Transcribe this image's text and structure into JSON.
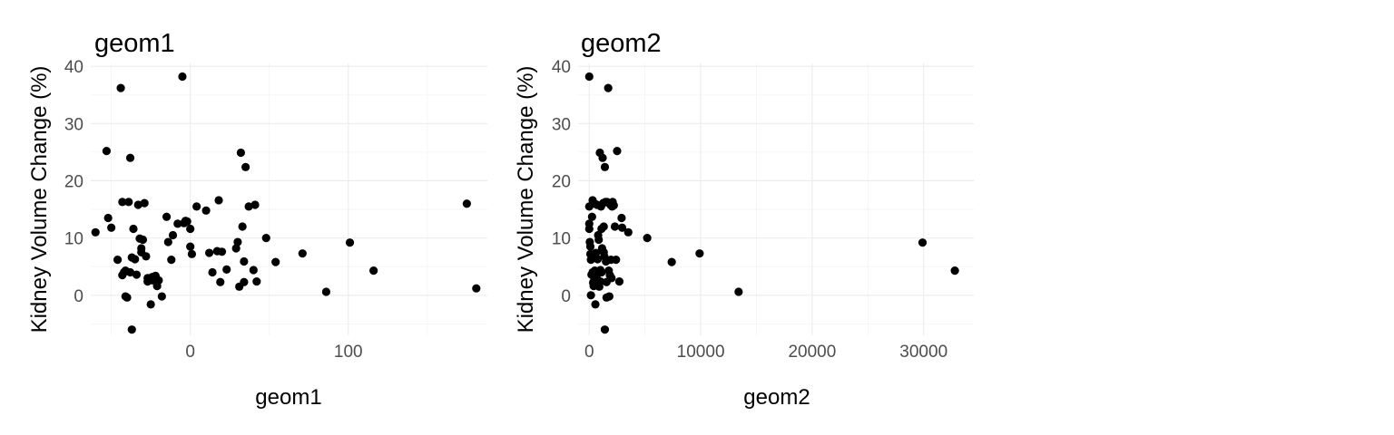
{
  "chart_data": [
    {
      "type": "scatter",
      "title": "geom1",
      "xlabel": "geom1",
      "ylabel": "Kidney Volume Change (%)",
      "xlim": [
        -63,
        188
      ],
      "ylim": [
        -7,
        40.5
      ],
      "x_ticks": [
        0,
        100
      ],
      "y_ticks": [
        0,
        10,
        20,
        30,
        40
      ],
      "grid": true,
      "x": [
        -60,
        -53,
        -52,
        -50,
        -46,
        -44,
        -43,
        -43,
        -42,
        -41,
        -41,
        -40,
        -39,
        -38,
        -38,
        -37,
        -37,
        -36,
        -35,
        -34,
        -33,
        -32,
        -31,
        -31,
        -30,
        -29,
        -28,
        -27,
        -27,
        -25,
        -24,
        -24,
        -22,
        -21,
        -20,
        -18,
        -15,
        -14,
        -12,
        -11,
        -8,
        -5,
        -4,
        -3,
        -2,
        0,
        0,
        1,
        4,
        10,
        12,
        14,
        17,
        18,
        19,
        20,
        23,
        29,
        30,
        31,
        32,
        33,
        34,
        34,
        35,
        37,
        40,
        41,
        42,
        48,
        54,
        71,
        86,
        101,
        116,
        175,
        181
      ],
      "y": [
        11,
        25.2,
        13.5,
        11.8,
        6.2,
        36.2,
        3.5,
        16.3,
        4,
        -0.2,
        4.3,
        -0.4,
        16.3,
        24,
        4,
        -6,
        6.6,
        11.6,
        6.3,
        3.6,
        15.8,
        9.9,
        8.2,
        7.5,
        9.7,
        16.1,
        6.8,
        2.4,
        3,
        -1.6,
        2.6,
        3.2,
        3.4,
        1.6,
        2.6,
        -0.2,
        13.7,
        9.3,
        6.2,
        10.5,
        12.5,
        38.2,
        12.6,
        13,
        12.9,
        11.6,
        8.5,
        7.2,
        15.5,
        14.8,
        7.4,
        4,
        7.7,
        16.6,
        2.3,
        7.6,
        4.5,
        8.2,
        9.3,
        1.5,
        24.9,
        12,
        5.9,
        2.3,
        22.4,
        15.5,
        4.4,
        15.8,
        2.4,
        10,
        5.8,
        7.3,
        0.6,
        9.2,
        4.3,
        16,
        1.2
      ]
    },
    {
      "type": "scatter",
      "title": "geom2",
      "xlabel": "geom2",
      "ylabel": "Kidney Volume Change (%)",
      "xlim": [
        -1000,
        34500
      ],
      "ylim": [
        -7,
        40.5
      ],
      "x_ticks": [
        0,
        10000,
        20000,
        30000
      ],
      "y_ticks": [
        0,
        10,
        20,
        30,
        40
      ],
      "grid": true,
      "x": [
        0,
        0,
        0,
        0,
        50,
        100,
        100,
        150,
        150,
        200,
        250,
        300,
        300,
        350,
        400,
        400,
        450,
        500,
        500,
        550,
        600,
        650,
        700,
        750,
        800,
        850,
        900,
        950,
        1000,
        1000,
        1050,
        1100,
        1100,
        1150,
        1200,
        1250,
        1300,
        1300,
        1350,
        1400,
        1400,
        1450,
        1500,
        1550,
        1550,
        1600,
        1700,
        1750,
        1800,
        1850,
        1900,
        1950,
        2000,
        2050,
        2100,
        2200,
        2300,
        2400,
        2500,
        2700,
        2900,
        2950,
        3500,
        5200,
        7400,
        9900,
        13400,
        29900,
        32800
      ],
      "y": [
        38.2,
        15.5,
        12.5,
        11.6,
        9.3,
        8.5,
        7.2,
        6.2,
        0,
        3.6,
        13.7,
        16.6,
        4,
        2.2,
        1.6,
        6.6,
        2.6,
        16,
        4.3,
        -1.6,
        7.4,
        3.2,
        15.8,
        6.3,
        10.5,
        9.7,
        1.5,
        24.9,
        2.4,
        4.4,
        15.5,
        11.6,
        4,
        8.2,
        24,
        16.1,
        7.5,
        12,
        6.8,
        -6,
        22.4,
        16.3,
        5.9,
        2.3,
        -0.4,
        16.3,
        36.2,
        4.3,
        -0.2,
        3.5,
        15.8,
        6.2,
        3,
        15.5,
        16.3,
        15.7,
        12,
        6.2,
        25.2,
        2.4,
        13.5,
        11.8,
        11,
        10,
        5.8,
        7.3,
        0.6,
        9.2,
        4.3
      ]
    }
  ]
}
